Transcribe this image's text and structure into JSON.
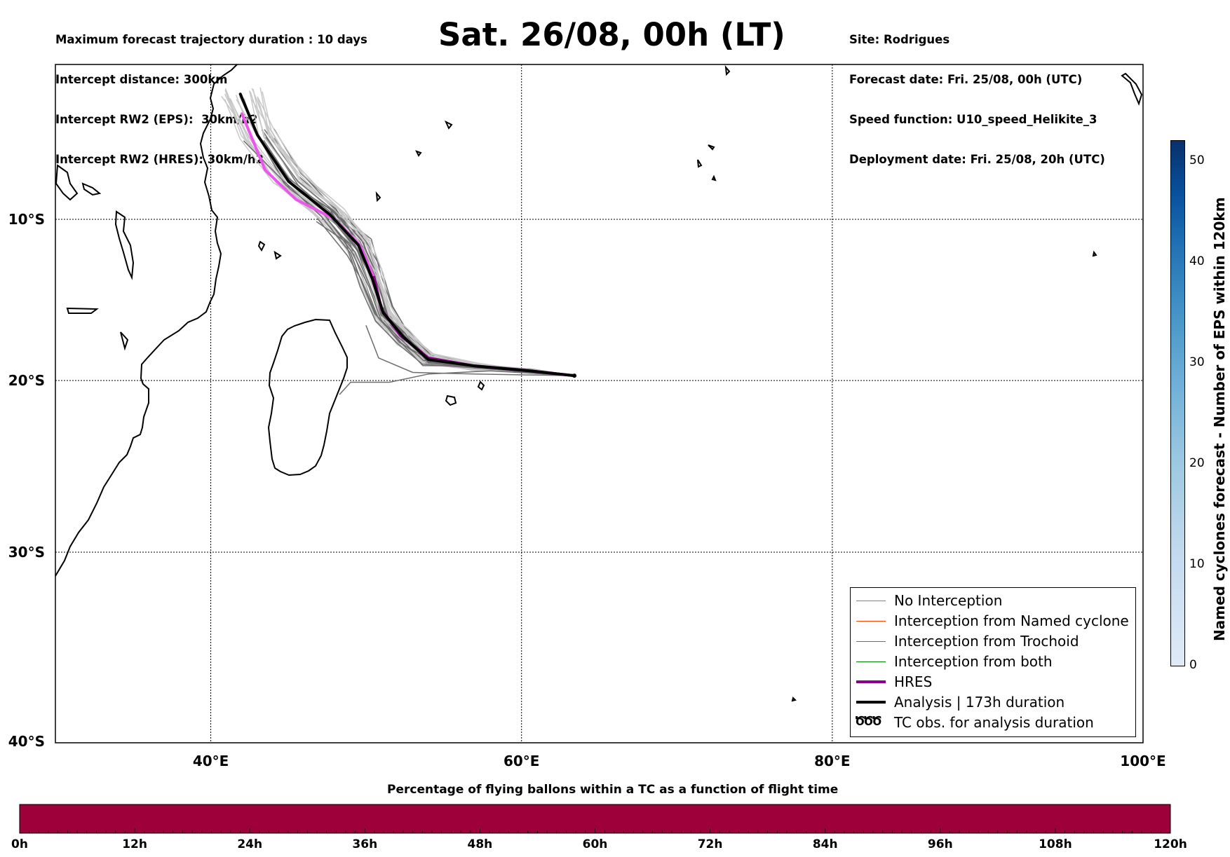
{
  "header": {
    "left_lines": [
      "Maximum forecast trajectory duration : 10 days",
      "Intercept distance: 300km",
      "Intercept RW2 (EPS):  30km/h2",
      "Intercept RW2 (HRES): 30km/h2"
    ],
    "title": "Sat. 26/08, 00h (LT)",
    "right_lines": [
      "Site: Rodrigues",
      "Forecast date: Fri. 25/08, 00h (UTC)",
      "Speed function: U10_speed_Helikite_3",
      "Deployment date: Fri. 25/08, 20h (UTC)"
    ]
  },
  "map": {
    "lat_labels": [
      "10°S",
      "20°S",
      "30°S",
      "40°S"
    ],
    "lon_labels": [
      "40°E",
      "60°E",
      "80°E",
      "100°E"
    ],
    "lon_range": [
      30,
      100
    ],
    "lat_range": [
      -40,
      1
    ],
    "grid": true,
    "trajectory_start": {
      "lon": 63.4,
      "lat": -19.7
    },
    "hres_track": [
      [
        63.4,
        -19.7
      ],
      [
        60.5,
        -19.4
      ],
      [
        57,
        -19.1
      ],
      [
        54,
        -18.6
      ],
      [
        52.2,
        -17.2
      ],
      [
        51,
        -15.6
      ],
      [
        50.5,
        -13.6
      ],
      [
        49.6,
        -11.6
      ],
      [
        48,
        -10
      ],
      [
        45.5,
        -8.6
      ],
      [
        43.5,
        -6.5
      ],
      [
        42,
        -2.5
      ]
    ],
    "analysis_track": [
      [
        63.4,
        -19.7
      ],
      [
        60.5,
        -19.4
      ],
      [
        57,
        -19.1
      ],
      [
        54,
        -18.7
      ],
      [
        52.4,
        -17.3
      ],
      [
        51.1,
        -15.8
      ],
      [
        50.4,
        -13.7
      ],
      [
        49.5,
        -11.6
      ],
      [
        47.7,
        -9.7
      ],
      [
        45,
        -7.3
      ],
      [
        43,
        -4
      ],
      [
        41.9,
        -1.1
      ]
    ]
  },
  "legend": {
    "items": [
      {
        "label": "No Interception",
        "color": "#808080"
      },
      {
        "label": "Interception from Named cyclone",
        "color": "#ff4500"
      },
      {
        "label": "Interception from Trochoid",
        "color": "#808000"
      },
      {
        "label": "Interception from both",
        "color": "#008000"
      },
      {
        "label": "HRES",
        "color": "#8b008b"
      },
      {
        "label": "Analysis | 173h duration",
        "color": "#000000"
      },
      {
        "label": "TC obs. for analysis duration",
        "icon": "tc-symbol-icon",
        "symbol": "ԾԾԾ"
      }
    ]
  },
  "colorbar": {
    "label": "Named cyclones forecast - Number of EPS within 120km",
    "ticks": [
      "0",
      "10",
      "20",
      "30",
      "40",
      "50"
    ],
    "range": [
      0,
      52
    ],
    "color_low": "#dfebf7",
    "color_high": "#08306b"
  },
  "bottom_bar": {
    "title": "Percentage of flying ballons within a TC as a function of flight time",
    "ticks": [
      "0h",
      "12h",
      "24h",
      "36h",
      "48h",
      "60h",
      "72h",
      "84h",
      "96h",
      "108h",
      "120h"
    ],
    "fill_color": "#9e003a",
    "percentages": [
      100,
      100,
      100,
      100,
      100,
      100,
      100,
      100,
      100,
      100,
      100
    ]
  }
}
